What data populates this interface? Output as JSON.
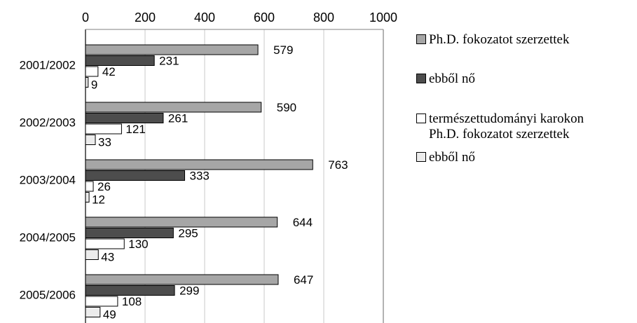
{
  "chart_data": {
    "type": "bar",
    "orientation": "horizontal",
    "categories": [
      "2001/2002",
      "2002/2003",
      "2003/2004",
      "2004/2005",
      "2005/2006"
    ],
    "series": [
      {
        "name": "Ph.D. fokozatot szerzettek",
        "values": [
          579,
          590,
          763,
          644,
          647
        ],
        "color": "#a6a6a6"
      },
      {
        "name": "ebből nő",
        "values": [
          231,
          261,
          333,
          295,
          299
        ],
        "color": "#4d4d4d"
      },
      {
        "name": "természettudományi karokon Ph.D. fokozatot szerzettek",
        "values": [
          42,
          121,
          26,
          130,
          108
        ],
        "color": "#ffffff"
      },
      {
        "name": "ebből nő",
        "values": [
          9,
          33,
          12,
          43,
          49
        ],
        "color": "#ececec"
      }
    ],
    "xlim": [
      0,
      1000
    ],
    "xticks": [
      "0",
      "200",
      "400",
      "600",
      "800",
      "1000"
    ],
    "grid": true,
    "axis_position": "top",
    "legend_position": "right",
    "data_labels": true
  },
  "legend": {
    "items": [
      {
        "label_lines": [
          "Ph.D. fokozatot szerzettek"
        ],
        "swatch_color": "#a6a6a6"
      },
      {
        "label_lines": [
          "ebből nő"
        ],
        "swatch_color": "#4d4d4d"
      },
      {
        "label_lines": [
          "természettudományi karokon",
          "Ph.D. fokozatot szerzettek"
        ],
        "swatch_color": "#ffffff"
      },
      {
        "label_lines": [
          "ebből nő"
        ],
        "swatch_color": "#ececec"
      }
    ]
  }
}
